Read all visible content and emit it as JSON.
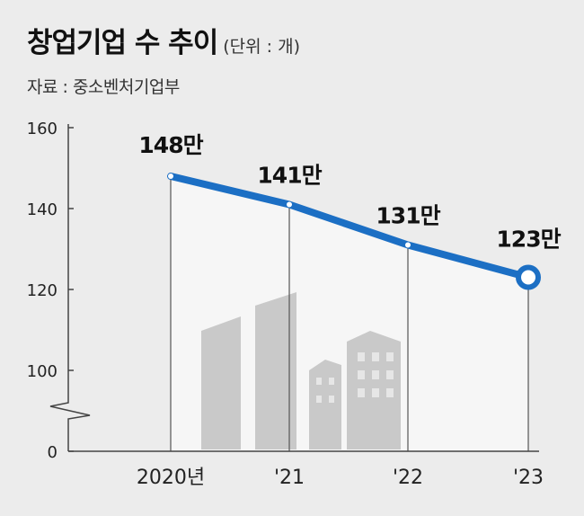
{
  "title": "창업기업 수 추이",
  "unit": "(단위 : 개)",
  "source": "자료 : 중소벤처기업부",
  "chart_data": {
    "type": "line",
    "title": "창업기업 수 추이",
    "unit": "(단위 : 개)",
    "x": [
      "2020년",
      "'21",
      "'22",
      "'23"
    ],
    "values": [
      148,
      141,
      131,
      123
    ],
    "data_labels": [
      "148만",
      "141만",
      "131만",
      "123만"
    ],
    "y_ticks": [
      "160",
      "140",
      "120",
      "100",
      "0"
    ],
    "ylim": [
      0,
      160
    ],
    "axis_break": "between 0 and 100",
    "line_color": "#1c6fc4",
    "fill_color": "#f6f6f6",
    "grid": false,
    "legend": "none"
  }
}
